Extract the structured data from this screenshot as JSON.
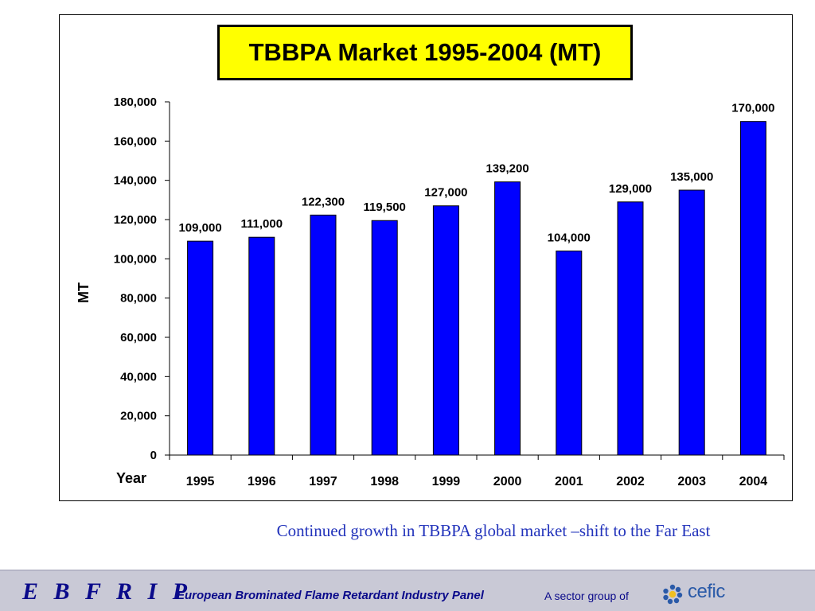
{
  "chart_data": {
    "type": "bar",
    "title": "TBBPA Market 1995-2004 (MT)",
    "xlabel": "Year",
    "ylabel": "MT",
    "categories": [
      "1995",
      "1996",
      "1997",
      "1998",
      "1999",
      "2000",
      "2001",
      "2002",
      "2003",
      "2004"
    ],
    "values": [
      109000,
      111000,
      122300,
      119500,
      127000,
      139200,
      104000,
      129000,
      135000,
      170000
    ],
    "data_labels": [
      "109,000",
      "111,000",
      "122,300",
      "119,500",
      "127,000",
      "139,200",
      "104,000",
      "129,000",
      "135,000",
      "170,000"
    ],
    "ylim": [
      0,
      180000
    ],
    "yticks": [
      0,
      20000,
      40000,
      60000,
      80000,
      100000,
      120000,
      140000,
      160000,
      180000
    ],
    "ytick_labels": [
      "0",
      "20,000",
      "40,000",
      "60,000",
      "80,000",
      "100,000",
      "120,000",
      "140,000",
      "160,000",
      "180,000"
    ],
    "grid": false,
    "bar_color": "#0000ff",
    "title_background": "#ffff00"
  },
  "caption": "Continued growth in TBBPA global market –shift to the Far East",
  "footer": {
    "brand": "E B F R I P",
    "panel": "European Brominated Flame Retardant Industry Panel",
    "sector_text": "A sector group of",
    "logo_text": "cefic",
    "logo_icon": "cefic-flower-icon",
    "background": "#c9c9d6",
    "text_color": "#0a0a8a"
  }
}
